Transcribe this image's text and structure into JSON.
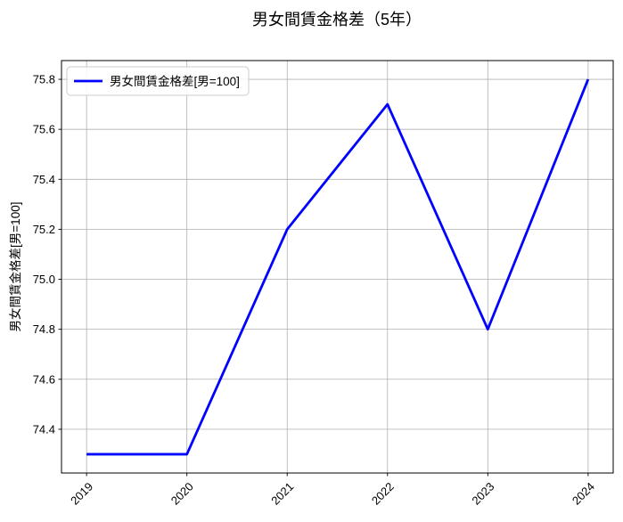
{
  "title": "男女間賃金格差（5年）",
  "legend": {
    "label": "男女間賃金格差[男=100]",
    "position": "upper left"
  },
  "chart_data": {
    "type": "line",
    "title": "男女間賃金格差（5年）",
    "xlabel": "",
    "ylabel": "男女間賃金格差[男=100]",
    "x": [
      2019,
      2020,
      2021,
      2022,
      2023,
      2024
    ],
    "series": [
      {
        "name": "男女間賃金格差[男=100]",
        "values": [
          74.3,
          74.3,
          75.2,
          75.7,
          74.8,
          75.8
        ],
        "color": "#0000ff"
      }
    ],
    "xticks": [
      2019,
      2020,
      2021,
      2022,
      2023,
      2024
    ],
    "xtick_labels": [
      "2019",
      "2020",
      "2021",
      "2022",
      "2023",
      "2024"
    ],
    "yticks": [
      74.4,
      74.6,
      74.8,
      75.0,
      75.2,
      75.4,
      75.6,
      75.8
    ],
    "ytick_labels": [
      "74.4",
      "74.6",
      "74.8",
      "75.0",
      "75.2",
      "75.4",
      "75.6",
      "75.8"
    ],
    "xlim": [
      2018.75,
      2024.25
    ],
    "ylim": [
      74.225,
      75.875
    ],
    "grid": true,
    "grid_color": "#b0b0b0",
    "axis_color": "#000000",
    "background": "#ffffff",
    "legend_position": "upper left"
  }
}
